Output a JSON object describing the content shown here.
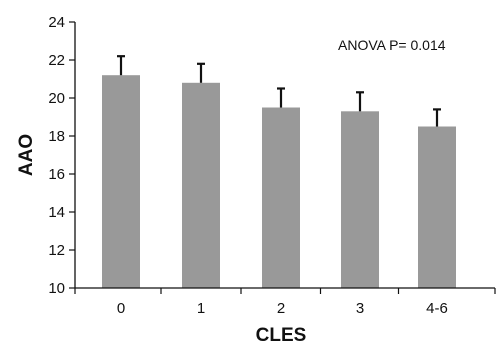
{
  "chart_data": {
    "type": "bar",
    "title": "",
    "categories": [
      "0",
      "1",
      "2",
      "3",
      "4-6"
    ],
    "series": [
      {
        "values": [
          21.2,
          20.8,
          19.5,
          19.3,
          18.5
        ],
        "error_upper": [
          1.0,
          1.0,
          1.0,
          1.0,
          0.9
        ],
        "color": "#999999"
      }
    ],
    "xlabel": "CLES",
    "ylabel": "AAO",
    "ylim": [
      10,
      24
    ],
    "yticks": [
      "10",
      "12",
      "14",
      "16",
      "18",
      "20",
      "22",
      "24"
    ],
    "grid": false,
    "annotation": "ANOVA P= 0.014",
    "error_bar_color": "#111111"
  }
}
